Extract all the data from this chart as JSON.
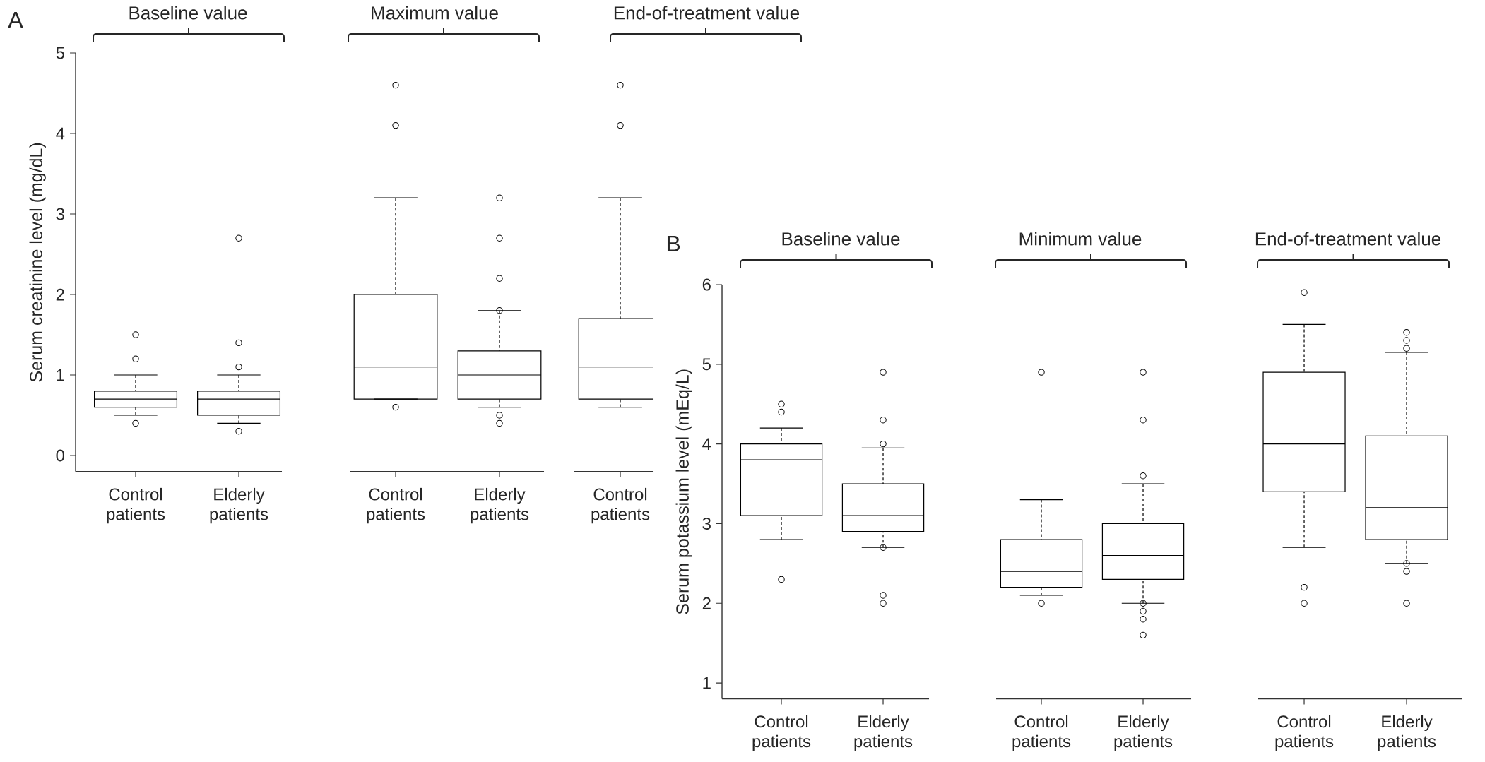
{
  "chart_data": [
    {
      "type": "box",
      "title": "Baseline value",
      "ylabel": "Serum creatinine level (mg/dL)",
      "annotations": [
        "A"
      ],
      "categories": [
        "Control patients",
        "Elderly patients"
      ],
      "ylim": [
        -0.2,
        5
      ],
      "yticks": [
        0,
        1,
        2,
        3,
        4,
        5
      ],
      "boxes": [
        {
          "low": 0.5,
          "q1": 0.6,
          "median": 0.7,
          "q3": 0.8,
          "high": 1.0,
          "outliers": [
            1.5,
            1.2,
            0.4
          ]
        },
        {
          "low": 0.4,
          "q1": 0.5,
          "median": 0.7,
          "q3": 0.8,
          "high": 1.0,
          "outliers": [
            2.7,
            1.4,
            1.1,
            0.3
          ]
        }
      ]
    },
    {
      "type": "box",
      "title": "Maximum value",
      "categories": [
        "Control patients",
        "Elderly patients"
      ],
      "ylim": [
        -0.2,
        5
      ],
      "tick_labels": "x",
      "boxes": [
        {
          "low": 0.7,
          "q1": 0.7,
          "median": 1.1,
          "q3": 2.0,
          "high": 3.2,
          "outliers": [
            4.6,
            4.1,
            0.6
          ]
        },
        {
          "low": 0.6,
          "q1": 0.7,
          "median": 1.0,
          "q3": 1.3,
          "high": 1.8,
          "outliers": [
            3.2,
            2.7,
            2.2,
            1.8,
            0.5,
            0.4
          ]
        }
      ]
    },
    {
      "type": "box",
      "title": "End-of-treatment value",
      "categories": [
        "Control patients"
      ],
      "ylim": [
        -0.2,
        5
      ],
      "tick_labels": "x",
      "boxes": [
        {
          "low": 0.6,
          "q1": 0.7,
          "median": 1.1,
          "q3": 1.7,
          "high": 3.2,
          "outliers": [
            4.6,
            4.1
          ]
        }
      ]
    },
    {
      "type": "box",
      "title": "Baseline value",
      "ylabel": "Serum potassium level (mEq/L)",
      "annotations": [
        "B"
      ],
      "categories": [
        "Control patients",
        "Elderly patients"
      ],
      "ylim": [
        0.8,
        6
      ],
      "yticks": [
        1,
        2,
        3,
        4,
        5,
        6
      ],
      "boxes": [
        {
          "low": 2.8,
          "q1": 3.1,
          "median": 3.8,
          "q3": 4.0,
          "high": 4.2,
          "outliers": [
            4.5,
            4.4,
            2.3
          ]
        },
        {
          "low": 2.7,
          "q1": 2.9,
          "median": 3.1,
          "q3": 3.5,
          "high": 3.95,
          "outliers": [
            4.9,
            4.3,
            4.0,
            2.7,
            2.1,
            2.0
          ]
        }
      ]
    },
    {
      "type": "box",
      "title": "Minimum value",
      "categories": [
        "Control patients",
        "Elderly patients"
      ],
      "ylim": [
        0.8,
        6
      ],
      "tick_labels": "x",
      "boxes": [
        {
          "low": 2.1,
          "q1": 2.2,
          "median": 2.4,
          "q3": 2.8,
          "high": 3.3,
          "outliers": [
            4.9,
            2.0
          ]
        },
        {
          "low": 2.0,
          "q1": 2.3,
          "median": 2.6,
          "q3": 3.0,
          "high": 3.5,
          "outliers": [
            4.9,
            4.3,
            3.6,
            2.0,
            1.9,
            1.8,
            1.6
          ]
        }
      ]
    },
    {
      "type": "box",
      "title": "End-of-treatment value",
      "categories": [
        "Control patients",
        "Elderly patients"
      ],
      "ylim": [
        0.8,
        6
      ],
      "tick_labels": "x",
      "boxes": [
        {
          "low": 2.7,
          "q1": 3.4,
          "median": 4.0,
          "q3": 4.9,
          "high": 5.5,
          "outliers": [
            5.9,
            2.2,
            2.0
          ]
        },
        {
          "low": 2.5,
          "q1": 2.8,
          "median": 3.2,
          "q3": 4.1,
          "high": 5.15,
          "outliers": [
            5.4,
            5.3,
            5.2,
            2.5,
            2.4,
            2.0
          ]
        }
      ]
    }
  ]
}
